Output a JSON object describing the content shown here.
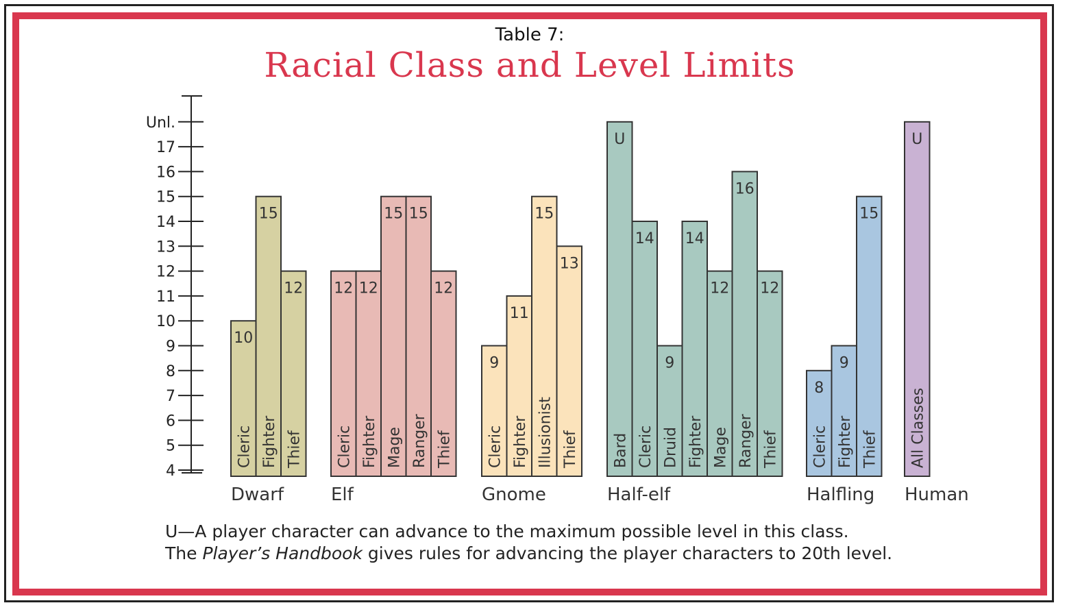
{
  "header": {
    "table_label": "Table 7:",
    "title": "Racial Class and Level Limits"
  },
  "footnote": {
    "line1": "U—A player character can advance to the maximum possible level in this class.",
    "line2_pre": "The ",
    "line2_book": "Player’s Handbook",
    "line2_post": " gives rules for advancing the player characters to 20th level."
  },
  "chart_data": {
    "type": "bar",
    "title": "Racial Class and Level Limits",
    "ylabel": "",
    "xlabel": "",
    "y_ticks": [
      "4",
      "5",
      "6",
      "7",
      "8",
      "9",
      "10",
      "11",
      "12",
      "13",
      "14",
      "15",
      "16",
      "17",
      "Unl."
    ],
    "ylim": [
      4,
      18
    ],
    "unlimited_value": 18,
    "groups": [
      {
        "race": "Dwarf",
        "color": "#d6d1a2",
        "bars": [
          {
            "class": "Cleric",
            "value": 10,
            "label": "10"
          },
          {
            "class": "Fighter",
            "value": 15,
            "label": "15"
          },
          {
            "class": "Thief",
            "value": 12,
            "label": "12"
          }
        ]
      },
      {
        "race": "Elf",
        "color": "#e8bab5",
        "bars": [
          {
            "class": "Cleric",
            "value": 12,
            "label": "12"
          },
          {
            "class": "Fighter",
            "value": 12,
            "label": "12"
          },
          {
            "class": "Mage",
            "value": 15,
            "label": "15"
          },
          {
            "class": "Ranger",
            "value": 15,
            "label": "15"
          },
          {
            "class": "Thief",
            "value": 12,
            "label": "12"
          }
        ]
      },
      {
        "race": "Gnome",
        "color": "#fbe3bb",
        "bars": [
          {
            "class": "Cleric",
            "value": 9,
            "label": "9"
          },
          {
            "class": "Fighter",
            "value": 11,
            "label": "11"
          },
          {
            "class": "Illusionist",
            "value": 15,
            "label": "15"
          },
          {
            "class": "Thief",
            "value": 13,
            "label": "13"
          }
        ]
      },
      {
        "race": "Half-elf",
        "color": "#a8c9c0",
        "bars": [
          {
            "class": "Bard",
            "value": 18,
            "label": "U"
          },
          {
            "class": "Cleric",
            "value": 14,
            "label": "14"
          },
          {
            "class": "Druid",
            "value": 9,
            "label": "9"
          },
          {
            "class": "Fighter",
            "value": 14,
            "label": "14"
          },
          {
            "class": "Mage",
            "value": 12,
            "label": "12"
          },
          {
            "class": "Ranger",
            "value": 16,
            "label": "16"
          },
          {
            "class": "Thief",
            "value": 12,
            "label": "12"
          }
        ]
      },
      {
        "race": "Halfling",
        "color": "#a9c6e0",
        "bars": [
          {
            "class": "Cleric",
            "value": 8,
            "label": "8"
          },
          {
            "class": "Fighter",
            "value": 9,
            "label": "9"
          },
          {
            "class": "Thief",
            "value": 15,
            "label": "15"
          }
        ]
      },
      {
        "race": "Human",
        "color": "#c9b2d3",
        "bars": [
          {
            "class": "All Classes",
            "value": 18,
            "label": "U"
          }
        ]
      }
    ]
  }
}
